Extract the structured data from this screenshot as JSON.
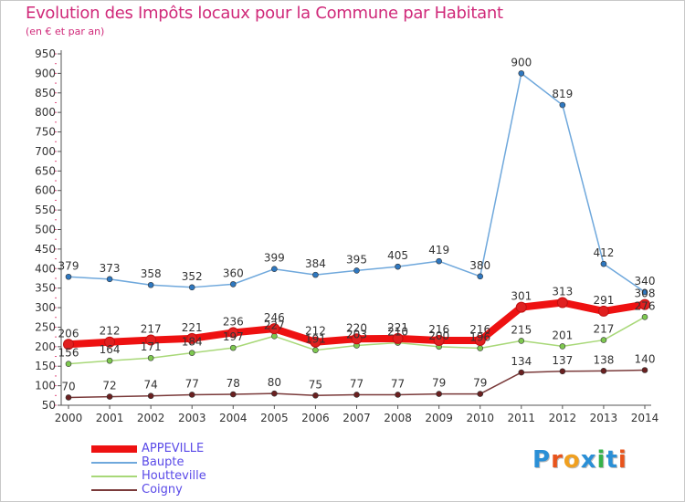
{
  "title": "Evolution des Impôts locaux pour la Commune par Habitant",
  "subtitle": "(en € et par an)",
  "logo": {
    "text": "Proxiti",
    "colors": [
      "#2a8fd6",
      "#e8541c",
      "#f0a020",
      "#2a8fd6",
      "#36b24a",
      "#2a8fd6",
      "#e8541c"
    ]
  },
  "chart_data": {
    "type": "line",
    "x": [
      "2000",
      "2001",
      "2002",
      "2003",
      "2004",
      "2005",
      "2006",
      "2007",
      "2008",
      "2009",
      "2010",
      "2011",
      "2012",
      "2013",
      "2014"
    ],
    "y_ticks": [
      "50",
      "100",
      "150",
      "200",
      "250",
      "300",
      "350",
      "400",
      "450",
      "500",
      "550",
      "600",
      "650",
      "700",
      "750",
      "800",
      "850",
      "900",
      "950"
    ],
    "ylim": [
      50,
      950
    ],
    "grid": false,
    "legend_position": "bottom-left",
    "series": [
      {
        "name": "APPEVILLE",
        "color": "#ee1111",
        "marker_color": "#e02020",
        "values": [
          206,
          212,
          217,
          221,
          236,
          246,
          212,
          220,
          221,
          216,
          216,
          301,
          313,
          291,
          308
        ],
        "labels": [
          "206",
          "212",
          "217",
          "221",
          "236",
          "246",
          "212",
          "220",
          "221",
          "216",
          "216",
          "301",
          "313",
          "291",
          "308"
        ]
      },
      {
        "name": "Baupte",
        "color": "#6fa8dc",
        "marker_color": "#2f78c0",
        "values": [
          379,
          373,
          358,
          352,
          360,
          399,
          384,
          395,
          405,
          419,
          380,
          900,
          819,
          412,
          340
        ],
        "labels": [
          "379",
          "373",
          "358",
          "352",
          "360",
          "399",
          "384",
          "395",
          "405",
          "419",
          "380",
          "900",
          "819",
          "412",
          "340"
        ]
      },
      {
        "name": "Houtteville",
        "color": "#a8d878",
        "marker_color": "#7ec850",
        "values": [
          156,
          164,
          171,
          184,
          197,
          227,
          191,
          203,
          210,
          200,
          196,
          215,
          201,
          217,
          276
        ],
        "labels": [
          "156",
          "164",
          "171",
          "184",
          "197",
          "227",
          "191",
          "203",
          "210",
          "200",
          "196",
          "215",
          "201",
          "217",
          "276"
        ]
      },
      {
        "name": "Coigny",
        "color": "#7a3a3a",
        "marker_color": "#6a2020",
        "values": [
          70,
          72,
          74,
          77,
          78,
          80,
          75,
          77,
          77,
          79,
          79,
          134,
          137,
          138,
          140
        ],
        "labels": [
          "70",
          "72",
          "74",
          "77",
          "78",
          "80",
          "75",
          "77",
          "77",
          "79",
          "79",
          "134",
          "137",
          "138",
          "140"
        ]
      }
    ]
  }
}
